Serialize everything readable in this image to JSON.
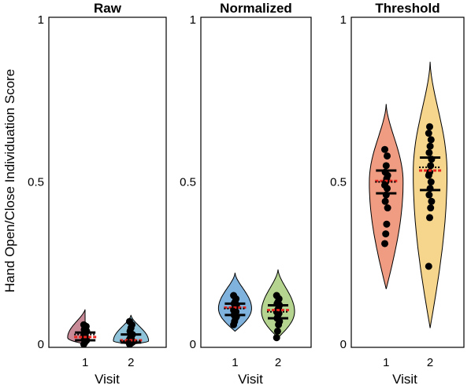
{
  "figure": {
    "ylabel": "Hand Open/Close Individuation Score",
    "xlabel": "Visit"
  },
  "chart_data": [
    {
      "type": "violin",
      "title": "Raw",
      "ylim": [
        0,
        1
      ],
      "yticks": [
        "0",
        "0.5",
        "1"
      ],
      "categories": [
        "1",
        "2"
      ],
      "series": [
        {
          "color": "#c98a97",
          "violin_range": [
            0.0,
            0.11
          ],
          "violin_peak": 0.02,
          "mean": 0.022,
          "median": 0.03,
          "quartiles": [
            0.012,
            0.036
          ],
          "points": [
            0.0,
            0.005,
            0.01,
            0.012,
            0.015,
            0.018,
            0.02,
            0.025,
            0.03,
            0.035,
            0.04,
            0.045,
            0.05,
            0.055,
            0.06
          ]
        },
        {
          "color": "#8fc3d9",
          "violin_range": [
            0.0,
            0.09
          ],
          "violin_peak": 0.01,
          "mean": 0.012,
          "median": 0.01,
          "quartiles": [
            0.005,
            0.03
          ],
          "points": [
            0.0,
            0.002,
            0.004,
            0.006,
            0.008,
            0.01,
            0.012,
            0.015,
            0.02,
            0.025,
            0.03,
            0.04,
            0.05,
            0.06,
            0.07
          ]
        }
      ]
    },
    {
      "type": "violin",
      "title": "Normalized",
      "ylim": [
        0,
        1
      ],
      "yticks": [
        "0",
        "0.5",
        "1"
      ],
      "categories": [
        "1",
        "2"
      ],
      "series": [
        {
          "color": "#7fb2dc",
          "violin_range": [
            0.04,
            0.22
          ],
          "violin_peak": 0.11,
          "mean": 0.113,
          "median": 0.11,
          "quartiles": [
            0.09,
            0.125
          ],
          "points": [
            0.06,
            0.07,
            0.08,
            0.085,
            0.09,
            0.095,
            0.1,
            0.105,
            0.11,
            0.115,
            0.12,
            0.125,
            0.13,
            0.14,
            0.15
          ]
        },
        {
          "color": "#b4d48f",
          "violin_range": [
            0.02,
            0.23
          ],
          "violin_peak": 0.1,
          "mean": 0.105,
          "median": 0.1,
          "quartiles": [
            0.08,
            0.12
          ],
          "points": [
            0.02,
            0.04,
            0.06,
            0.07,
            0.08,
            0.09,
            0.095,
            0.1,
            0.105,
            0.11,
            0.12,
            0.125,
            0.13,
            0.14,
            0.15
          ]
        }
      ]
    },
    {
      "type": "violin",
      "title": "Threshold",
      "ylim": [
        0,
        1
      ],
      "yticks": [
        "0",
        "0.5",
        "1"
      ],
      "categories": [
        "1",
        "2"
      ],
      "series": [
        {
          "color": "#ef9c82",
          "violin_range": [
            0.17,
            0.74
          ],
          "violin_peak": 0.5,
          "mean": 0.503,
          "median": 0.5,
          "quartiles": [
            0.465,
            0.535
          ],
          "points": [
            0.31,
            0.34,
            0.37,
            0.42,
            0.44,
            0.46,
            0.48,
            0.49,
            0.5,
            0.51,
            0.52,
            0.53,
            0.55,
            0.58,
            0.6
          ]
        },
        {
          "color": "#f6d58c",
          "violin_range": [
            0.05,
            0.87
          ],
          "violin_peak": 0.53,
          "mean": 0.535,
          "median": 0.545,
          "quartiles": [
            0.475,
            0.575
          ],
          "points": [
            0.24,
            0.39,
            0.42,
            0.44,
            0.46,
            0.48,
            0.5,
            0.52,
            0.53,
            0.55,
            0.57,
            0.59,
            0.61,
            0.63,
            0.65,
            0.67
          ]
        }
      ]
    }
  ]
}
